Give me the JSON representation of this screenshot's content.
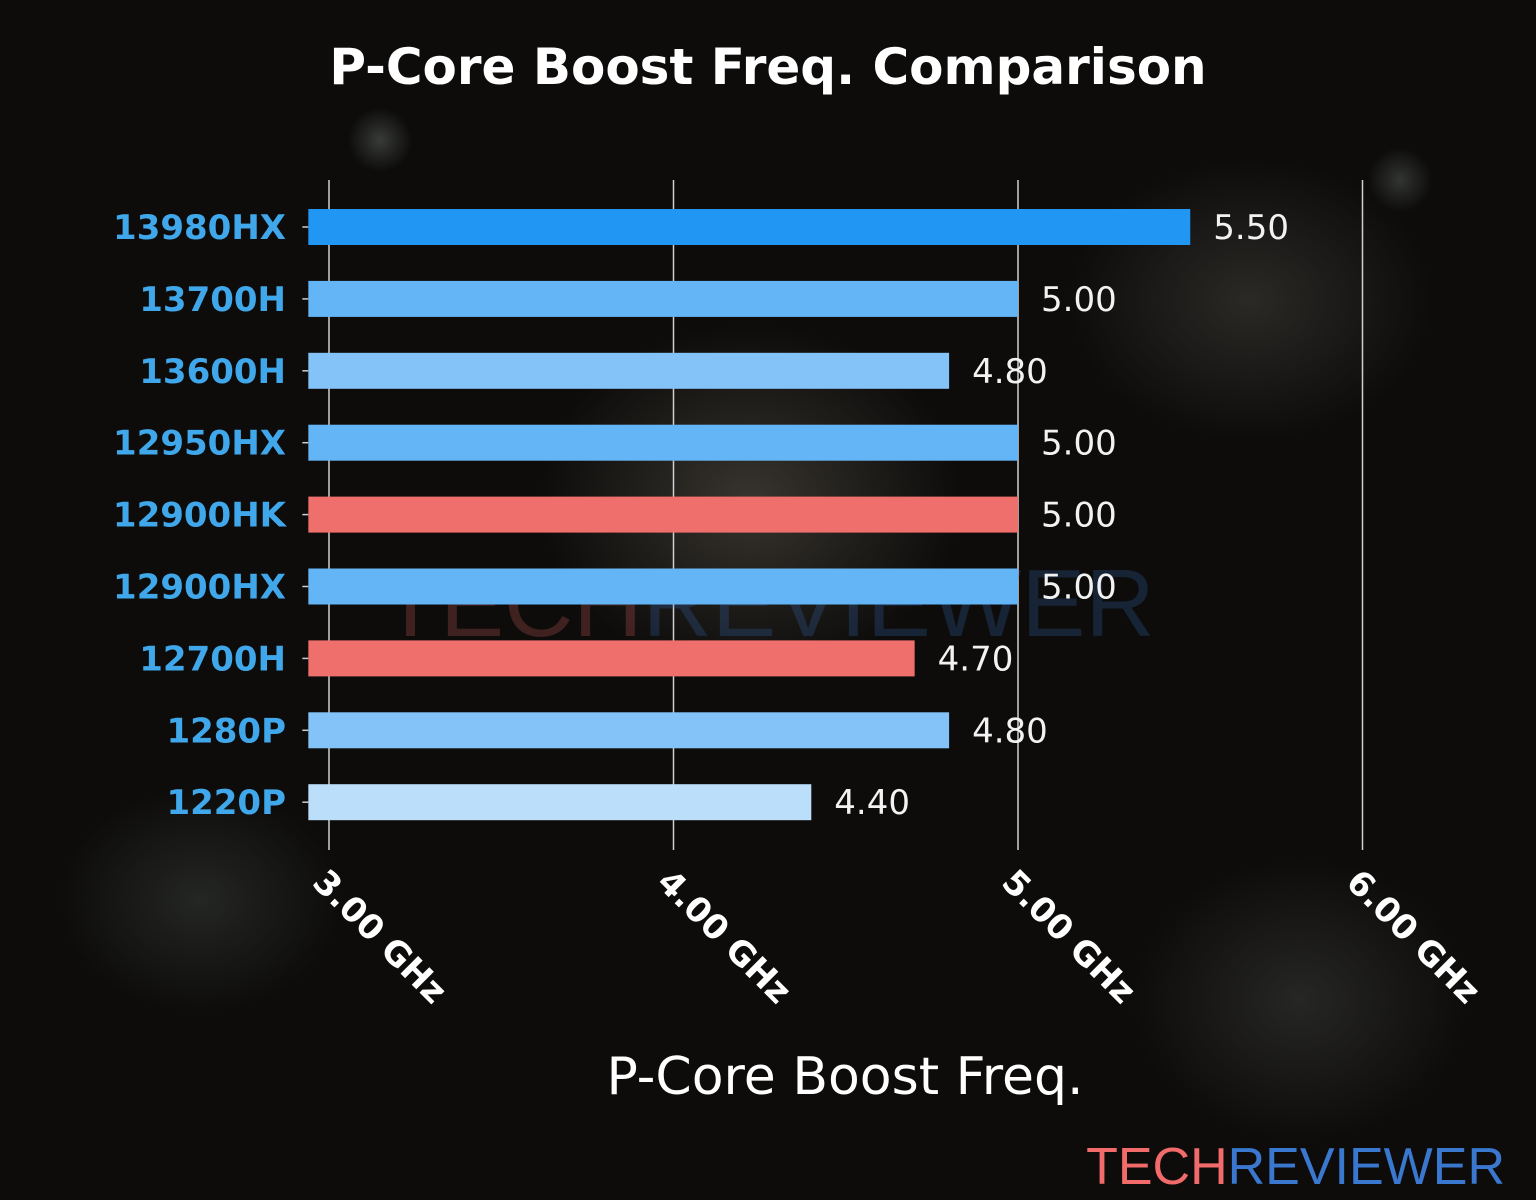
{
  "chart_data": {
    "type": "bar",
    "orientation": "horizontal",
    "title": "P-Core Boost Freq. Comparison",
    "xlabel": "P-Core Boost Freq.",
    "ylabel": "",
    "xlim": [
      2.94,
      6.0
    ],
    "x_ticks": [
      3,
      4,
      5,
      6
    ],
    "x_tick_labels": [
      "3.00 GHz",
      "4.00 GHz",
      "5.00 GHz",
      "6.00 GHz"
    ],
    "grid": "vertical",
    "categories": [
      "13980HX",
      "13700H",
      "13600H",
      "12950HX",
      "12900HK",
      "12900HX",
      "12700H",
      "1280P",
      "1220P"
    ],
    "values": [
      5.5,
      5.0,
      4.8,
      5.0,
      5.0,
      5.0,
      4.7,
      4.8,
      4.4
    ],
    "value_labels": [
      "5.50",
      "5.00",
      "4.80",
      "5.00",
      "5.00",
      "5.00",
      "4.70",
      "4.80",
      "4.40"
    ],
    "colors": [
      "#2196f3",
      "#64b5f6",
      "#84c3f8",
      "#64b5f6",
      "#ef6f6c",
      "#64b5f6",
      "#ef6f6c",
      "#84c3f8",
      "#bbdefb"
    ]
  },
  "watermark": {
    "part1": "TECH",
    "part2": "REVIEWER",
    "color1": "#f26b6b",
    "color2": "#3a78d0"
  },
  "logo": {
    "part1": "TECH",
    "part2": "REVIEWER",
    "color1": "#f26b6b",
    "color2": "#3a78d0"
  }
}
